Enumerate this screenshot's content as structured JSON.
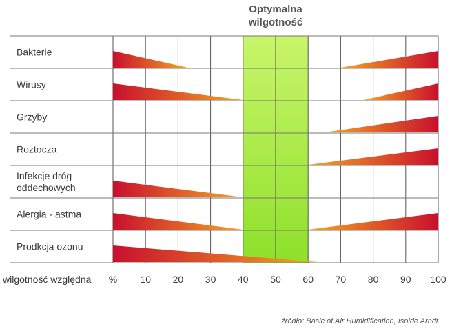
{
  "chart_data": {
    "type": "bar",
    "title_lines": [
      "Optymalna",
      "wilgotność"
    ],
    "xlabel": "wilgotność względna",
    "x_ticks": [
      "%",
      "10",
      "20",
      "30",
      "40",
      "50",
      "60",
      "70",
      "80",
      "90",
      "100"
    ],
    "xlim": [
      0,
      100
    ],
    "optimal_range": [
      40,
      60
    ],
    "categories": [
      "Bakterie",
      "Wirusy",
      "Grzyby",
      "Roztocza",
      "Infekcje dróg oddechowych",
      "Alergia - astma",
      "Prodkcja ozonu"
    ],
    "category_lines": [
      [
        "Bakterie"
      ],
      [
        "Wirusy"
      ],
      [
        "Grzyby"
      ],
      [
        "Roztocza"
      ],
      [
        "Infekcje dróg",
        "oddechowych"
      ],
      [
        "Alergia - astma"
      ],
      [
        "Prodkcja ozonu"
      ]
    ],
    "wedges": [
      {
        "category": "Bakterie",
        "left_end": 23,
        "right_start": 70
      },
      {
        "category": "Wirusy",
        "left_end": 40,
        "right_start": 77
      },
      {
        "category": "Grzyby",
        "left_end": null,
        "right_start": 65
      },
      {
        "category": "Roztocza",
        "left_end": null,
        "right_start": 60
      },
      {
        "category": "Infekcje dróg oddechowych",
        "left_end": 40,
        "right_start": null
      },
      {
        "category": "Alergia - astma",
        "left_end": 40,
        "right_start": 60
      },
      {
        "category": "Prodkcja ozonu",
        "left_end": 63,
        "right_start": null
      }
    ],
    "colors": {
      "optimal_band": "#8ee02a",
      "optimal_band_light": "#c9f56a",
      "wedge_strong": "#c8102e",
      "wedge_weak": "#f5a623",
      "grid": "#555555",
      "row_bg_line": "#777777"
    },
    "source": "źródło: Basic of Air Humidification, Isolde Arndt"
  }
}
